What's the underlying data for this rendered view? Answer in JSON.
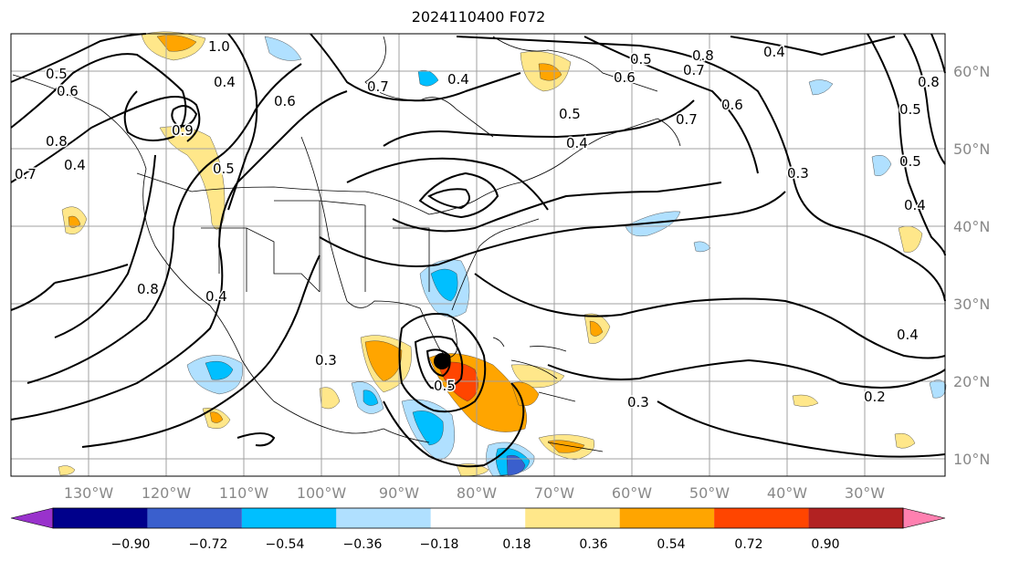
{
  "title": "2024110400 F072",
  "lon_labels": [
    "130°W",
    "120°W",
    "110°W",
    "100°W",
    "90°W",
    "80°W",
    "70°W",
    "60°W",
    "50°W",
    "40°W",
    "30°W"
  ],
  "lat_labels": [
    "60°N",
    "50°N",
    "40°N",
    "30°N",
    "20°N",
    "10°N"
  ],
  "contour_labels": [
    "0.5",
    "0.6",
    "0.7",
    "0.4",
    "0.8",
    "1.0",
    "0.9",
    "0.4",
    "0.6",
    "0.8",
    "0.4",
    "0.5",
    "0.4",
    "0.7",
    "0.5",
    "0.7",
    "0.6",
    "0.8",
    "0.4",
    "0.5",
    "0.4",
    "0.6",
    "0.3",
    "0.7",
    "0.5",
    "0.4",
    "0.8",
    "0.5",
    "0.3",
    "0.5",
    "0.3",
    "0.2",
    "0.4"
  ],
  "colorbar": {
    "ticks": [
      "−0.90",
      "−0.72",
      "−0.54",
      "−0.36",
      "−0.18",
      "0.18",
      "0.36",
      "0.54",
      "0.72",
      "0.90"
    ],
    "colors": [
      "#9932cc",
      "#00008b",
      "#3a5fcd",
      "#00bfff",
      "#b0e0ff",
      "#ffffff",
      "#ffe78a",
      "#ffa500",
      "#ff4500",
      "#b22222",
      "#ff80b0"
    ]
  },
  "storm_marker": "black-dot"
}
